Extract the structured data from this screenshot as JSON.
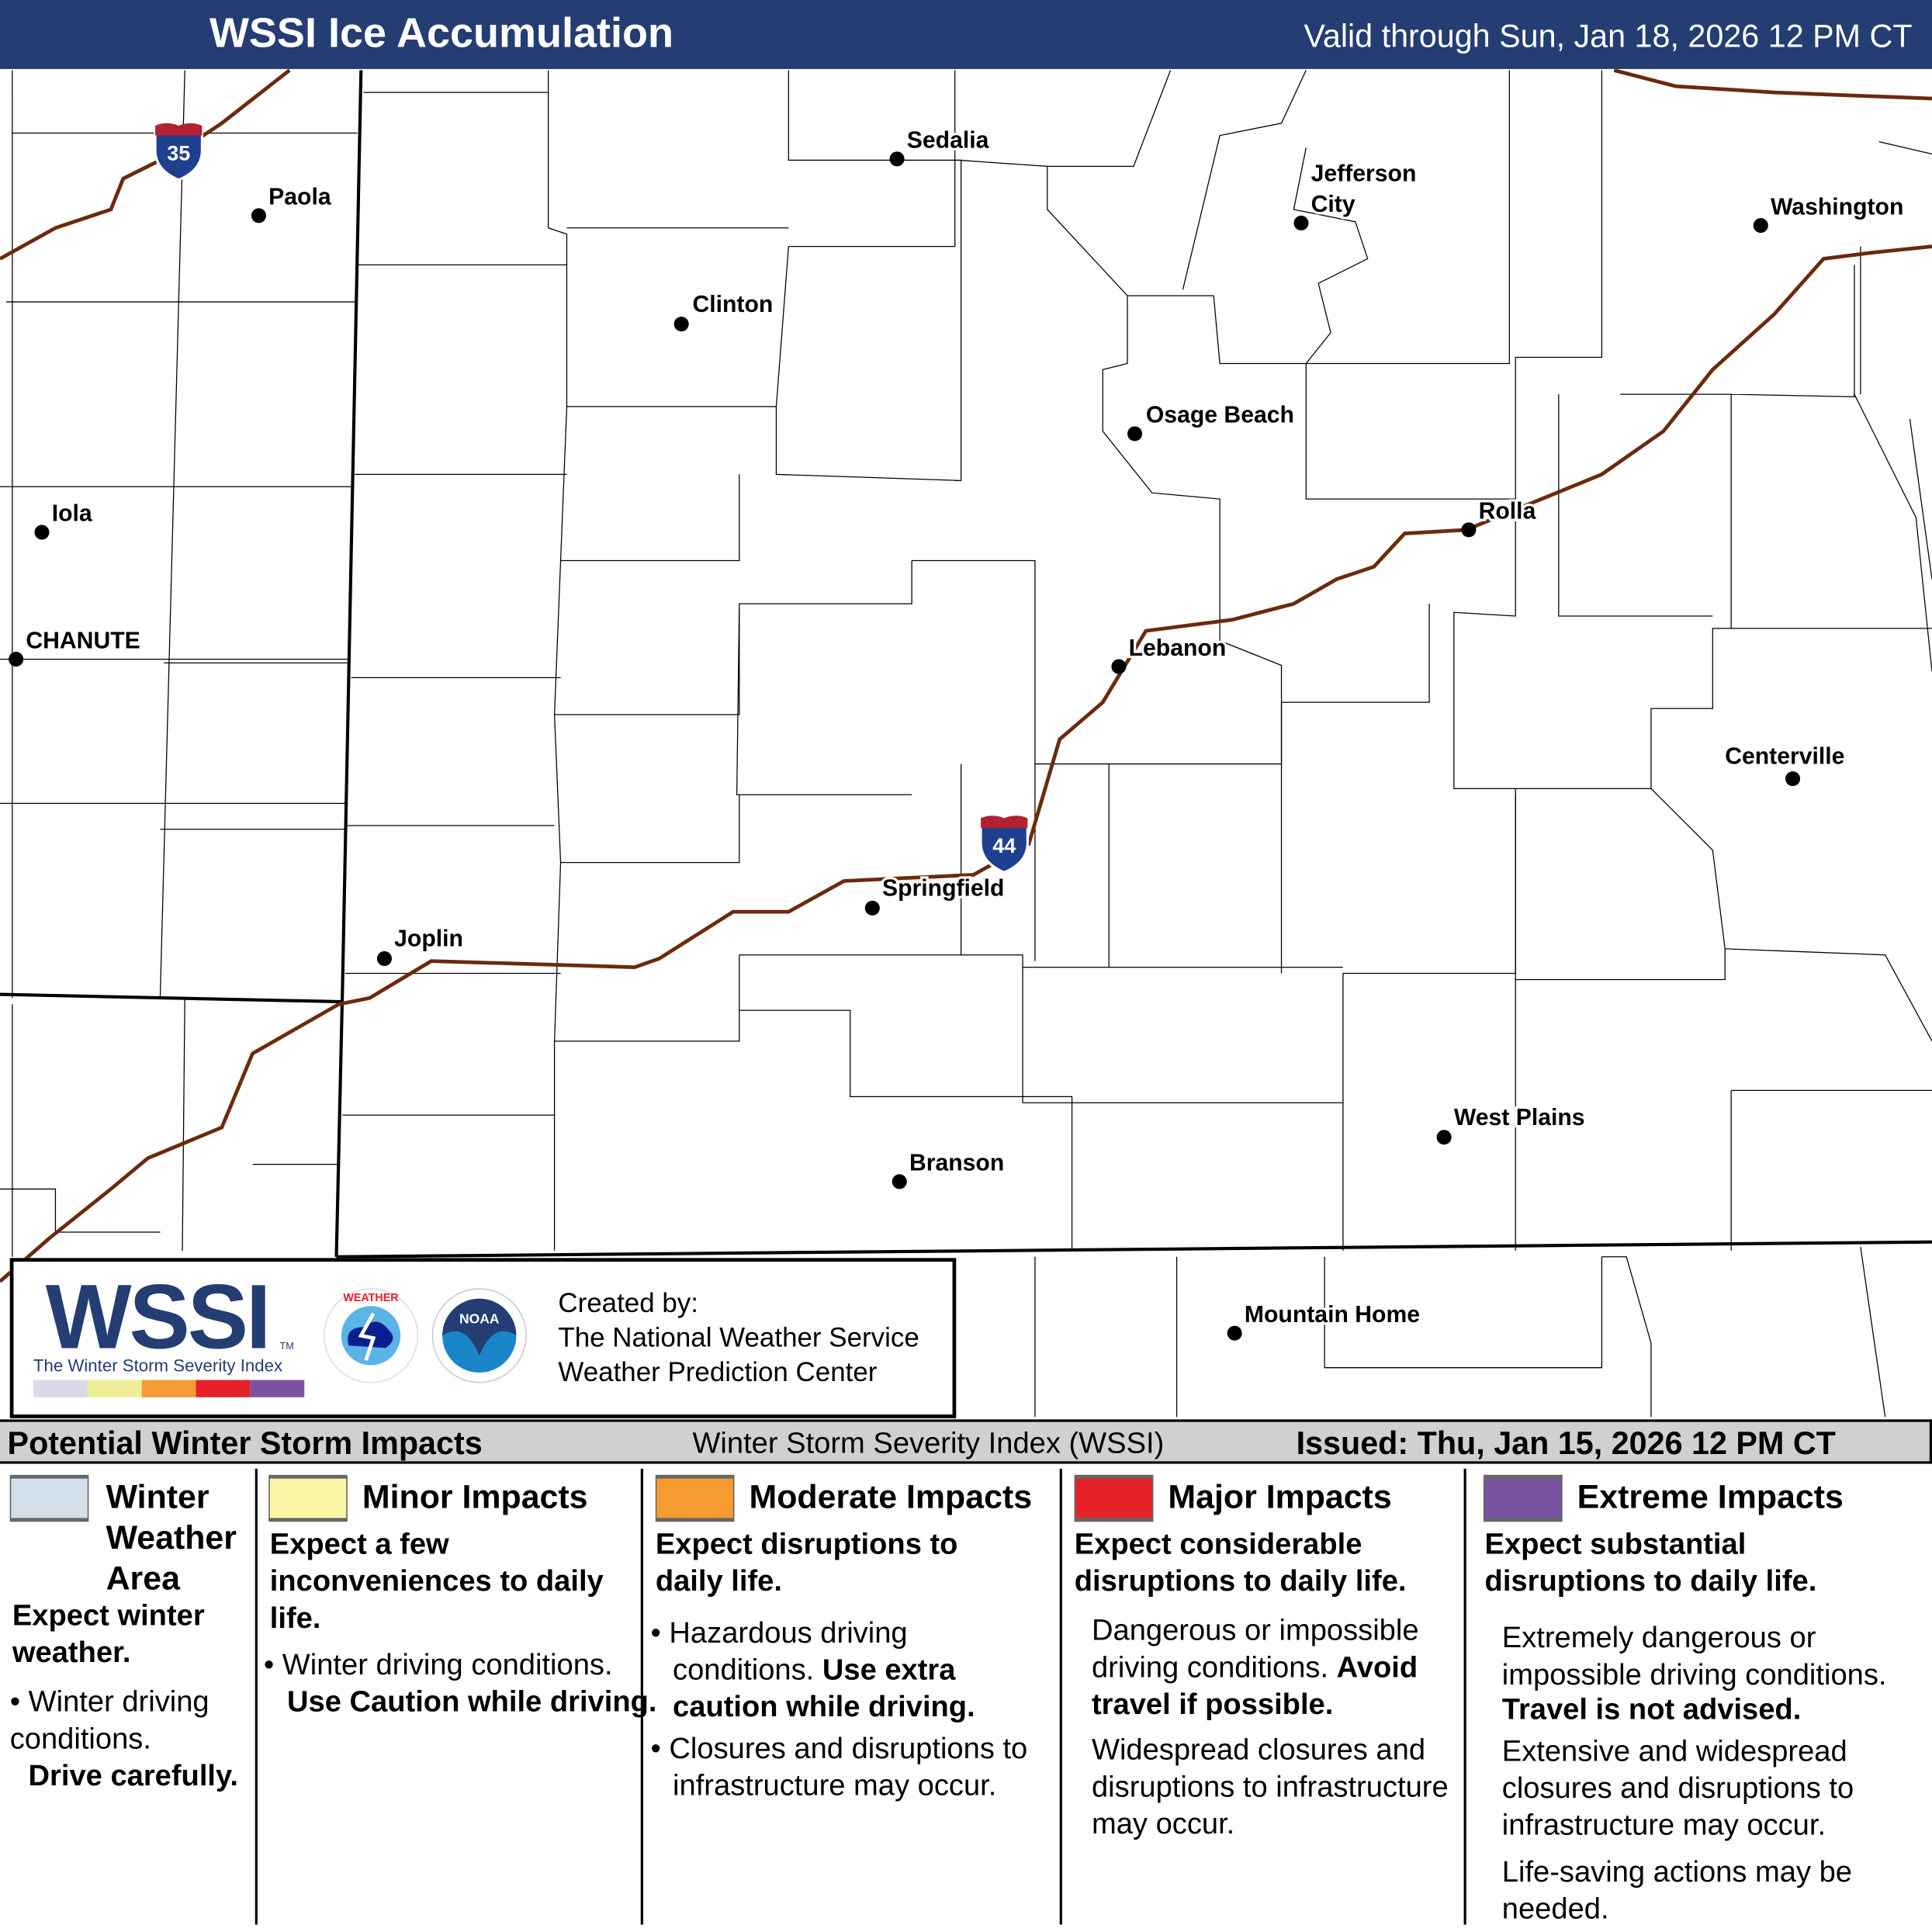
{
  "header": {
    "title": "WSSI Ice Accumulation",
    "valid": "Valid through Sun, Jan 18, 2026 12 PM CT"
  },
  "map": {
    "interstates": [
      {
        "number": "35"
      },
      {
        "number": "44"
      }
    ],
    "route_color": "#6b2a0c",
    "cities": [
      "Sedalia",
      "Paola",
      "Jefferson City",
      "Washington",
      "Clinton",
      "Osage Beach",
      "Iola",
      "Rolla",
      "CHANUTE",
      "Lebanon",
      "Centerville",
      "Springfield",
      "Joplin",
      "West Plains",
      "Branson",
      "Mountain Home"
    ]
  },
  "logo": {
    "wssi": "WSSI",
    "tm": "TM",
    "subtitle": "The Winter Storm Severity Index",
    "nws_ring": "NATIONAL WEATHER SERVICE",
    "noaa": "NOAA",
    "created_by": "Created by:",
    "org1": "The National Weather Service",
    "org2": "Weather Prediction Center",
    "scale_colors": [
      "#d9d9e8",
      "#eeee98",
      "#f79b35",
      "#e5202a",
      "#7a54a0"
    ]
  },
  "band": {
    "left": "Potential Winter Storm Impacts",
    "center": "Winter Storm Severity Index (WSSI)",
    "right": "Issued: Thu, Jan 15, 2026 12 PM CT"
  },
  "legend": [
    {
      "title": "Winter Weather Area",
      "color": "#d3dfe8",
      "expect": "Expect winter weather.",
      "bullets": [
        "Winter driving conditions. ",
        "Drive carefully."
      ]
    },
    {
      "title": "Minor Impacts",
      "color": "#f9f7a6",
      "expect": "Expect a few inconveniences to daily life.",
      "bullets": [
        "Winter driving conditions. ",
        "Use Caution while driving."
      ]
    },
    {
      "title": "Moderate Impacts",
      "color": "#f79a30",
      "expect": "Expect disruptions to daily life.",
      "bullets": [
        "Hazardous driving conditions. ",
        "Use extra caution while driving.",
        "Closures and disruptions to infrastructure may occur."
      ]
    },
    {
      "title": "Major Impacts",
      "color": "#e52228",
      "expect": "Expect considerable disruptions to daily life.",
      "bullets": [
        "Dangerous or impossible driving conditions. ",
        "Avoid travel if possible.",
        "Widespread closures and disruptions to infrastructure may occur."
      ]
    },
    {
      "title": "Extreme Impacts",
      "color": "#7a54a0",
      "expect": "Expect substantial disruptions to daily life.",
      "bullets": [
        "Extremely dangerous or impossible driving conditions.",
        "Travel is not advised.",
        "Extensive and widespread closures and disruptions to infrastructure may occur.",
        "Life-saving actions may be needed."
      ]
    }
  ]
}
